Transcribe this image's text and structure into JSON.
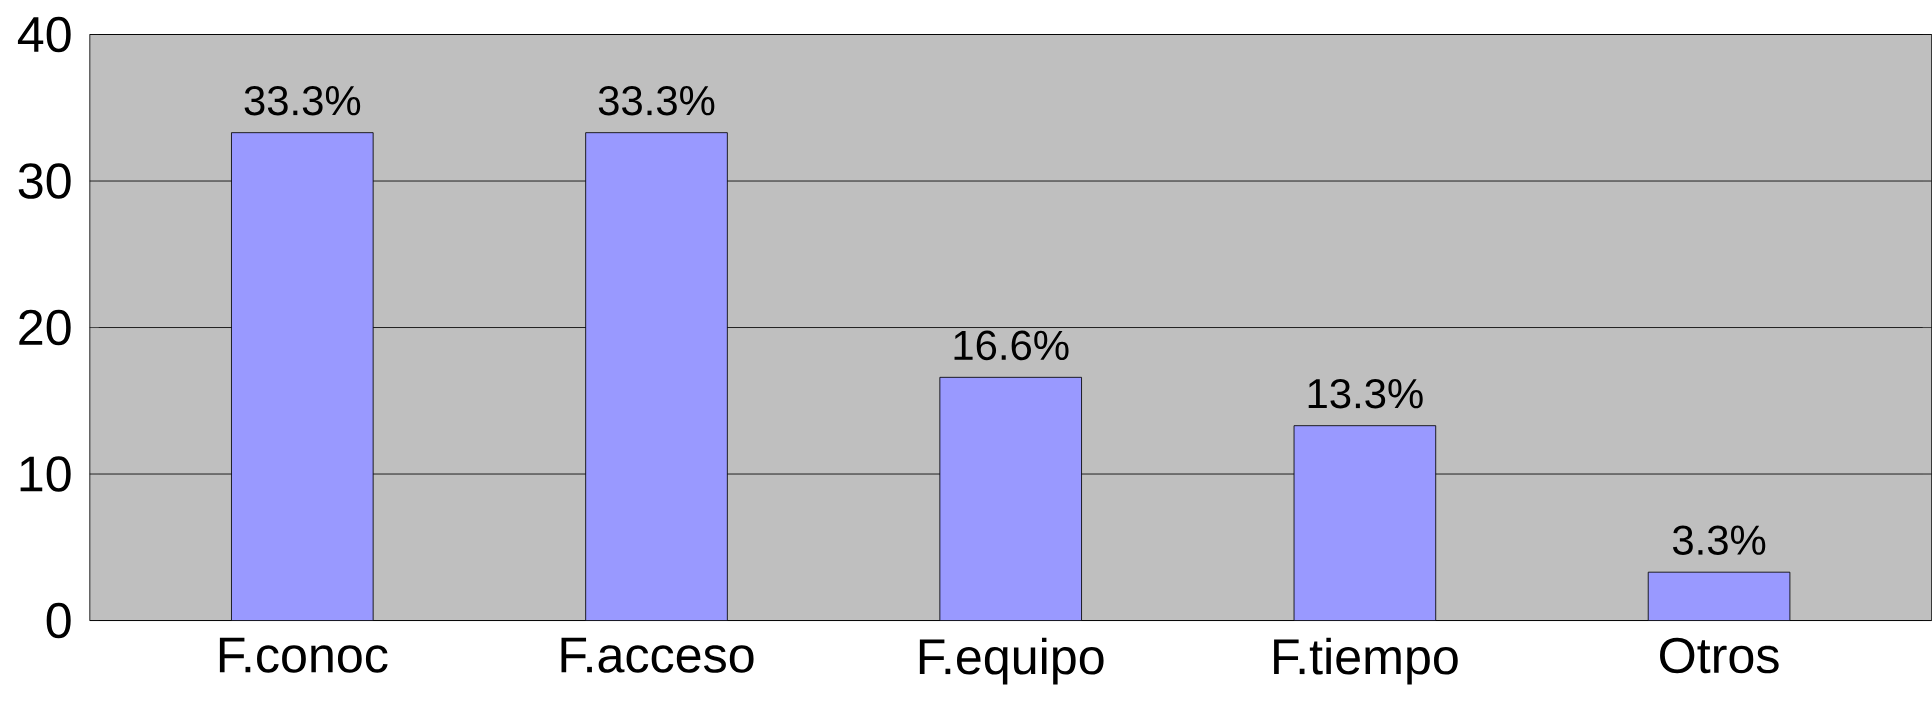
{
  "chart_data": {
    "type": "bar",
    "categories": [
      "F.conoc",
      "F.acceso",
      "F.equipo",
      "F.tiempo",
      "Otros"
    ],
    "values": [
      33.3,
      33.3,
      16.6,
      13.3,
      3.3
    ],
    "value_labels": [
      "33.3%",
      "33.3%",
      "16.6%",
      "13.3%",
      "3.3%"
    ],
    "color": "#9999ff",
    "ylim": [
      0,
      40
    ],
    "yticks": [
      0,
      10,
      20,
      30,
      40
    ],
    "grid": "y"
  }
}
